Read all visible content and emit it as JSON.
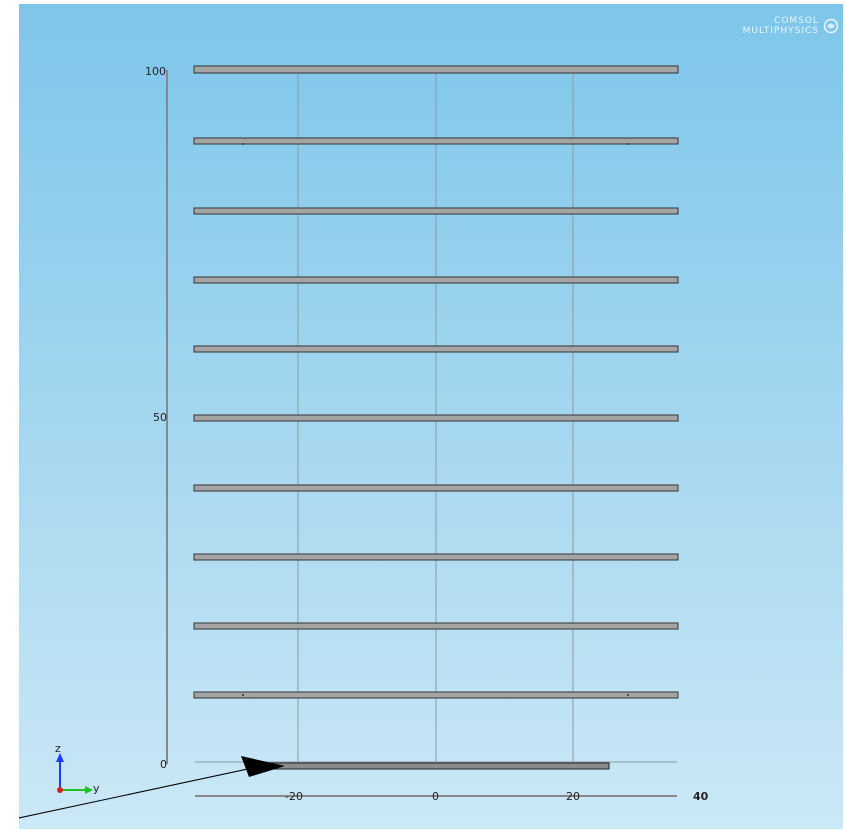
{
  "logo": {
    "line1": "COMSOL",
    "line2": "MULTIPHYSICS",
    "icon": "comsol-logo-icon"
  },
  "axes": {
    "z_ticks": [
      "100",
      "50",
      "0"
    ],
    "y_ticks": [
      "-20",
      "0",
      "20"
    ],
    "x_tick_overlap": "40"
  },
  "triad": {
    "z_label": "z",
    "y_label": "y",
    "z_color": "#1a3cff",
    "y_color": "#20c020",
    "origin_color": "#d02020"
  },
  "geometry": {
    "plate_count": 10,
    "plate_color": "#9a9a9a",
    "base_plate_color": "#888888",
    "pointer": "black-arrow-annotation"
  }
}
